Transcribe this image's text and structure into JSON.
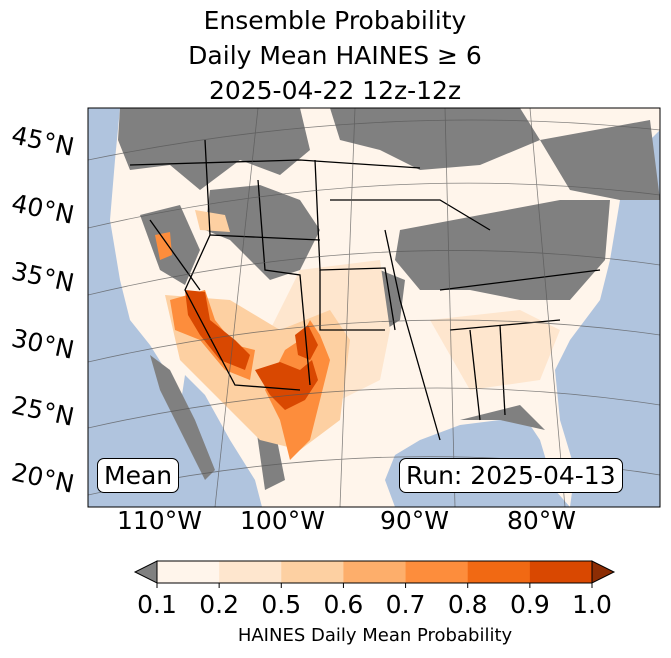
{
  "chart_data": {
    "type": "heatmap",
    "title_lines": [
      "Ensemble Probability",
      "Daily Mean HAINES ≥ 6",
      "2025-04-22 12z-12z"
    ],
    "region": "Continental United States",
    "lat_labels": [
      "45°N",
      "40°N",
      "35°N",
      "30°N",
      "25°N",
      "20°N"
    ],
    "lon_labels": [
      "110°W",
      "100°W",
      "90°W",
      "80°W"
    ],
    "mean_label": "Mean",
    "run_label": "Run: 2025-04-13",
    "colorbar": {
      "label": "HAINES Daily Mean Probability",
      "levels": [
        "0.1",
        "0.2",
        "0.5",
        "0.6",
        "0.7",
        "0.8",
        "0.9",
        "1.0"
      ],
      "colors": [
        "#fff5eb",
        "#fee6ce",
        "#fdd0a2",
        "#fdae6b",
        "#fd8d3c",
        "#f16913",
        "#d94801"
      ],
      "under_color": "#808080",
      "over_color": "#8c2d04",
      "extend": "both"
    },
    "highlights": "Highest probabilities (0.8-1.0) over Arizona, southern New Mexico and west Texas"
  },
  "colors": {
    "ocean": "#b0c4de",
    "land_low": "#808080"
  }
}
